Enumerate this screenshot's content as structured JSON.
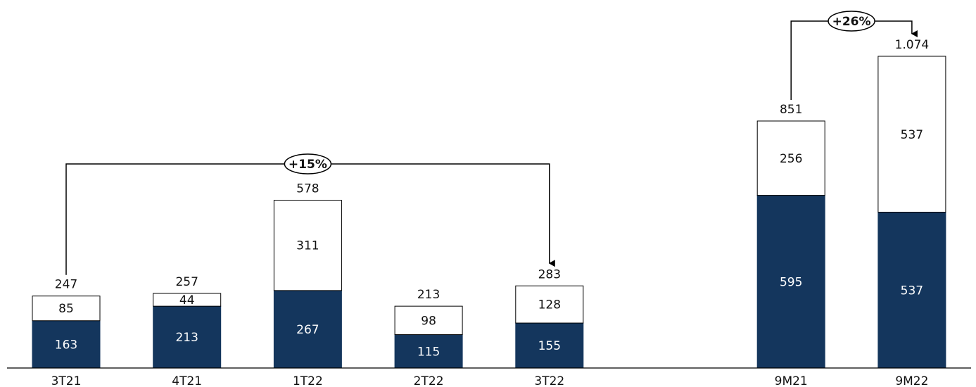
{
  "chart_data": {
    "type": "stacked_bar",
    "categories": [
      "3T21",
      "4T21",
      "1T22",
      "2T22",
      "3T22",
      null,
      "9M21",
      "9M22"
    ],
    "series": [
      {
        "color": "#14365d",
        "values": [
          163,
          213,
          267,
          115,
          155,
          null,
          595,
          537
        ]
      },
      {
        "color": "#ffffff",
        "values": [
          85,
          44,
          311,
          98,
          128,
          null,
          256,
          537
        ]
      }
    ],
    "totals": {
      "values": [
        247,
        257,
        578,
        213,
        283,
        null,
        851,
        1074
      ],
      "value_labels": [
        "247",
        "257",
        "578",
        "213",
        "283",
        null,
        "851",
        "1.074"
      ]
    },
    "annotations": [
      "+15%",
      "+26%"
    ]
  }
}
